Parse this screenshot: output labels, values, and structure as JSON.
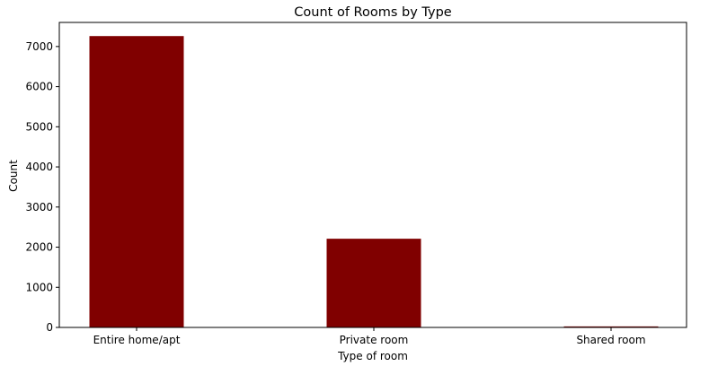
{
  "chart_data": {
    "type": "bar",
    "title": "Count of Rooms by Type",
    "xlabel": "Type of room",
    "ylabel": "Count",
    "categories": [
      "Entire home/apt",
      "Private room",
      "Shared room"
    ],
    "values": [
      7260,
      2210,
      25
    ],
    "ylim": [
      0,
      7600
    ],
    "yticks": [
      0,
      1000,
      2000,
      3000,
      4000,
      5000,
      6000,
      7000
    ],
    "ytick_labels": [
      "0",
      "1000",
      "2000",
      "3000",
      "4000",
      "5000",
      "6000",
      "7000"
    ],
    "grid": false,
    "legend": "none",
    "bar_color": "#800000"
  }
}
